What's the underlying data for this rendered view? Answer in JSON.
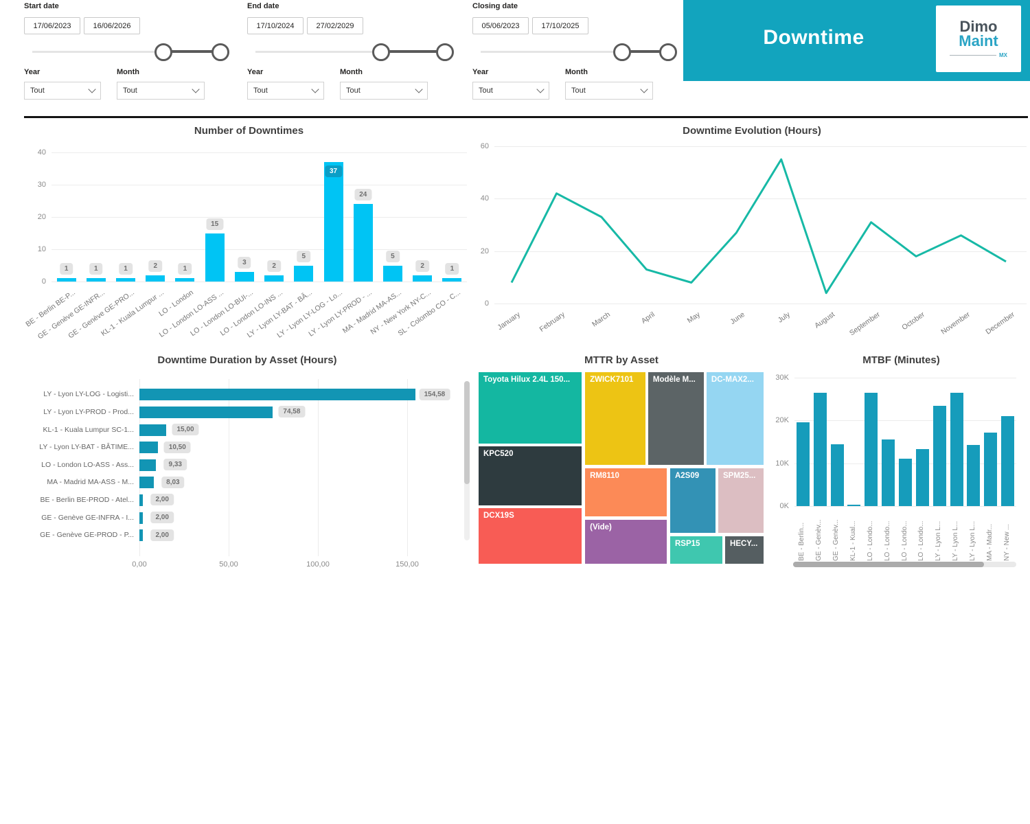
{
  "colors": {
    "header_bg": "#12a4be",
    "logo_teal": "#2aa4c5",
    "cyan_bar": "#00c4f4",
    "cyan_label_bg": "#0b9ec6",
    "teal_line": "#17b9a6",
    "duration_bar": "#1295b4",
    "mtbf_bar": "#169cbb"
  },
  "filters": {
    "groups": [
      {
        "label": "Start date",
        "date_from": "17/06/2023",
        "date_to": "16/06/2026",
        "slider": {
          "from_pct": 66.9,
          "to_pct": 95.9
        },
        "year": {
          "label": "Year",
          "value": "Tout"
        },
        "month": {
          "label": "Month",
          "value": "Tout"
        }
      },
      {
        "label": "End date",
        "date_from": "17/10/2024",
        "date_to": "27/02/2029",
        "slider": {
          "from_pct": 63.9,
          "to_pct": 96.5
        },
        "year": {
          "label": "Year",
          "value": "Tout"
        },
        "month": {
          "label": "Month",
          "value": "Tout"
        }
      },
      {
        "label": "Closing date",
        "date_from": "05/06/2023",
        "date_to": "17/10/2025",
        "slider": {
          "from_pct": 72.0,
          "to_pct": 95.3
        },
        "year": {
          "label": "Year",
          "value": "Tout"
        },
        "month": {
          "label": "Month",
          "value": "Tout"
        }
      }
    ]
  },
  "header": {
    "title": "Downtime",
    "logo_line1": "Dimo",
    "logo_line2": "Maint",
    "logo_badge": "MX"
  },
  "chart_data": [
    {
      "id": "number-of-downtimes",
      "type": "bar",
      "title": "Number of Downtimes",
      "categories": [
        "BE - Berlin BE-P...",
        "GE - Genève GE-INFR...",
        "GE - Genève GE-PRO...",
        "KL-1 - Kuala Lumpur ...",
        "LO - London",
        "LO - London LO-ASS ...",
        "LO - London LO-BUI-...",
        "LO - London LO-INS ...",
        "LY - Lyon LY-BAT - BÂ...",
        "LY - Lyon LY-LOG - Lo...",
        "LY - Lyon LY-PROD - ...",
        "MA - Madrid MA-AS...",
        "NY - New York NY-C...",
        "SL - Colombo CO - C..."
      ],
      "values": [
        1,
        1,
        1,
        2,
        1,
        15,
        3,
        2,
        5,
        37,
        24,
        5,
        2,
        1
      ],
      "ylim": [
        0,
        40
      ],
      "yticks": [
        0,
        10,
        20,
        30,
        40
      ],
      "grid": true,
      "data_labels": true
    },
    {
      "id": "downtime-evolution",
      "type": "line",
      "title": "Downtime Evolution (Hours)",
      "categories": [
        "January",
        "February",
        "March",
        "April",
        "May",
        "June",
        "July",
        "August",
        "September",
        "October",
        "November",
        "December"
      ],
      "values": [
        8,
        42,
        33,
        13,
        8,
        27,
        55,
        4,
        31,
        18,
        26,
        16
      ],
      "ylim": [
        0,
        60
      ],
      "yticks": [
        0,
        20,
        40,
        60
      ],
      "grid": true
    },
    {
      "id": "downtime-duration-by-asset",
      "type": "horizontal-bar",
      "title": "Downtime Duration by Asset (Hours)",
      "categories": [
        "LY - Lyon LY-LOG - Logisti...",
        "LY - Lyon LY-PROD - Prod...",
        "KL-1 - Kuala Lumpur SC-1...",
        "LY - Lyon LY-BAT - BÂTIME...",
        "LO - London LO-ASS - Ass...",
        "MA - Madrid MA-ASS - M...",
        "BE - Berlin BE-PROD - Atel...",
        "GE - Genève GE-INFRA - I...",
        "GE - Genève GE-PROD - P..."
      ],
      "values": [
        154.58,
        74.58,
        15.0,
        10.5,
        9.33,
        8.03,
        2.0,
        2.0,
        2.0
      ],
      "value_labels": [
        "154,58",
        "74,58",
        "15,00",
        "10,50",
        "9,33",
        "8,03",
        "2,00",
        "2,00",
        "2,00"
      ],
      "xlim": [
        0,
        150
      ],
      "xticks": [
        0,
        50,
        100,
        150
      ],
      "xtick_labels": [
        "0,00",
        "50,00",
        "100,00",
        "150,00"
      ],
      "grid": true,
      "data_labels": true
    },
    {
      "id": "mttr-by-asset",
      "type": "treemap",
      "title": "MTTR by Asset",
      "items": [
        {
          "label": "Toyota Hilux 2.4L 150...",
          "color": "#14b7a1",
          "x": 0,
          "y": 0,
          "w": 36.5,
          "h": 37.8
        },
        {
          "label": "KPC520",
          "color": "#2e3b3f",
          "x": 0,
          "y": 38.4,
          "w": 36.5,
          "h": 31.3
        },
        {
          "label": "DCX19S",
          "color": "#f85c55",
          "x": 0,
          "y": 70.5,
          "w": 36.5,
          "h": 29.5
        },
        {
          "label": "ZWICK7101",
          "color": "#edc414",
          "x": 37.2,
          "y": 0,
          "w": 21.6,
          "h": 48.8
        },
        {
          "label": "RM8110",
          "color": "#fc8a57",
          "x": 37.2,
          "y": 49.8,
          "w": 29.0,
          "h": 25.8
        },
        {
          "label": "(Vide)",
          "color": "#9b63a5",
          "x": 37.2,
          "y": 76.5,
          "w": 29.0,
          "h": 23.5
        },
        {
          "label": "Modèle M...",
          "color": "#5c6466",
          "x": 59.2,
          "y": 0,
          "w": 19.9,
          "h": 48.8
        },
        {
          "label": "DC-MAX2...",
          "color": "#95d6f2",
          "x": 79.6,
          "y": 0,
          "w": 20.4,
          "h": 48.8
        },
        {
          "label": "A2S09",
          "color": "#3392b5",
          "x": 66.9,
          "y": 49.8,
          "w": 16.3,
          "h": 34.2
        },
        {
          "label": "SPM25...",
          "color": "#dcbec2",
          "x": 83.7,
          "y": 49.8,
          "w": 16.3,
          "h": 34.2
        },
        {
          "label": "RSP15",
          "color": "#3fc7af",
          "x": 66.9,
          "y": 85.0,
          "w": 18.7,
          "h": 15.0
        },
        {
          "label": "HECY...",
          "color": "#555e61",
          "x": 86.1,
          "y": 85.0,
          "w": 13.9,
          "h": 15.0
        }
      ]
    },
    {
      "id": "mtbf-minutes",
      "type": "bar",
      "title": "MTBF (Minutes)",
      "categories": [
        "BE - Berlin...",
        "GE - Genèv...",
        "GE - Genèv...",
        "KL-1 - Kual...",
        "LO - Londo...",
        "LO - Londo...",
        "LO - Londo...",
        "LO - Londo...",
        "LY - Lyon L...",
        "LY - Lyon L...",
        "LY - Lyon L...",
        "MA - Madr...",
        "NY - New ..."
      ],
      "values": [
        19500,
        26500,
        14400,
        400,
        26500,
        15500,
        11000,
        13300,
        23400,
        26400,
        14200,
        17200,
        21000
      ],
      "ylim": [
        0,
        30000
      ],
      "yticks": [
        0,
        10000,
        20000,
        30000
      ],
      "ytick_labels": [
        "0K",
        "10K",
        "20K",
        "30K"
      ],
      "grid": true,
      "data_labels": false
    }
  ]
}
